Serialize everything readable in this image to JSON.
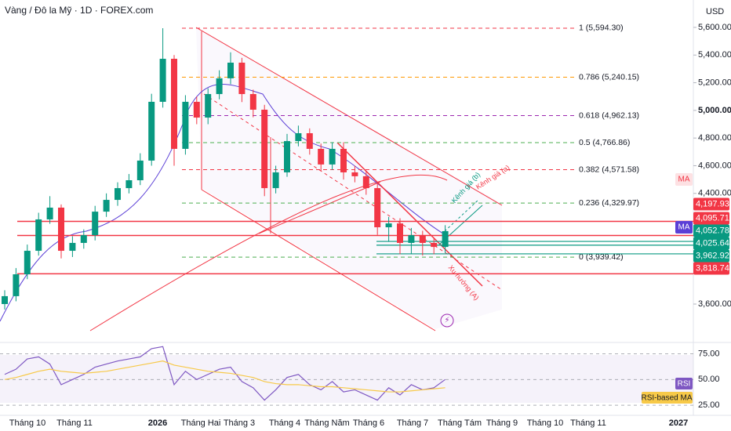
{
  "chart_data": [
    {
      "type": "candlestick",
      "title": "Vàng / Đô la Mỹ · 1D · FOREX.com",
      "currency": "USD",
      "up_color": "#089981",
      "down_color": "#f23645",
      "x_labels": [
        "Tháng 10",
        "Tháng 11",
        "2026",
        "Tháng Hai",
        "Tháng 3",
        "Tháng 4",
        "Tháng Năm",
        "Tháng 6",
        "Tháng 7",
        "Tháng Tám",
        "Tháng 9",
        "Tháng 10",
        "Tháng 11",
        "2027"
      ],
      "open": [
        3600,
        3657,
        3815,
        3985,
        4212,
        4297,
        3985,
        4042,
        4098,
        4268,
        4353,
        4438,
        4495,
        4637,
        5062,
        5373,
        4722,
        5062,
        4948,
        5118,
        5232,
        5345,
        5118,
        5005,
        4438,
        4552,
        4778,
        4835,
        4722,
        4609,
        4722,
        4552,
        4524,
        4438,
        4155,
        4183,
        4042,
        4098,
        4042,
        4013
      ],
      "high": [
        3700,
        3860,
        4030,
        4260,
        4380,
        4320,
        4090,
        4140,
        4310,
        4400,
        4480,
        4540,
        4690,
        5120,
        5594,
        5400,
        5110,
        5100,
        5160,
        5290,
        5420,
        5380,
        5150,
        5040,
        4600,
        4830,
        4890,
        4870,
        4760,
        4770,
        4770,
        4600,
        4560,
        4470,
        4230,
        4220,
        4150,
        4130,
        4080,
        4170
      ],
      "low": [
        3560,
        3620,
        3780,
        3950,
        4180,
        3930,
        3940,
        4000,
        4060,
        4230,
        4310,
        4400,
        4460,
        4600,
        5020,
        4600,
        4680,
        4900,
        4900,
        5080,
        5190,
        5060,
        4950,
        4380,
        4400,
        4520,
        4740,
        4680,
        4560,
        4570,
        4500,
        4480,
        4390,
        4100,
        4050,
        3960,
        3960,
        3950,
        3960,
        3970
      ],
      "close": [
        3657,
        3815,
        3985,
        4212,
        4297,
        3985,
        4042,
        4098,
        4268,
        4353,
        4438,
        4495,
        4637,
        5062,
        5373,
        4722,
        5062,
        4948,
        5118,
        5232,
        5345,
        5118,
        5005,
        4438,
        4552,
        4778,
        4835,
        4722,
        4609,
        4722,
        4552,
        4524,
        4438,
        4155,
        4183,
        4042,
        4098,
        4042,
        4013,
        4127
      ],
      "ylim": [
        3362,
        5798
      ],
      "yticks": [
        {
          "value": 5600,
          "label": "5,600.00"
        },
        {
          "value": 5400,
          "label": "5,400.00"
        },
        {
          "value": 5200,
          "label": "5,200.00"
        },
        {
          "value": 5000,
          "label": "5,000.00"
        },
        {
          "value": 4800,
          "label": "4,800.00"
        },
        {
          "value": 4600,
          "label": "4,600.00"
        },
        {
          "value": 4400,
          "label": "4,400.00"
        },
        {
          "value": 3600,
          "label": "3,600.00"
        }
      ],
      "fib_levels": [
        {
          "label": "1 (5,594.30)",
          "value": 5594.3,
          "color": "#f23645"
        },
        {
          "label": "0.786 (5,240.15)",
          "value": 5240.15,
          "color": "#ff9800"
        },
        {
          "label": "0.618 (4,962.13)",
          "value": 4962.13,
          "color": "#9c27b0"
        },
        {
          "label": "0.5 (4,766.86)",
          "value": 4766.86,
          "color": "#4caf50"
        },
        {
          "label": "0.382 (4,571.58)",
          "value": 4571.58,
          "color": "#f23645"
        },
        {
          "label": "0.236 (4,329.97)",
          "value": 4329.97,
          "color": "#4caf50"
        },
        {
          "label": "0 (3,939.42)",
          "value": 3939.42,
          "color": "#4caf50"
        }
      ],
      "price_tags": [
        {
          "value": 4197.93,
          "label": "4,197.93",
          "color": "#f23645"
        },
        {
          "value": 4095.71,
          "label": "4,095.71",
          "color": "#f23645"
        },
        {
          "value": 4052.78,
          "label": "4,052.78",
          "color": "#089981"
        },
        {
          "value": 4025.64,
          "label": "4,025.64",
          "color": "#089981"
        },
        {
          "value": 3962.92,
          "label": "3,962.92",
          "color": "#089981"
        },
        {
          "value": 3818.74,
          "label": "3,818.74",
          "color": "#f23645"
        }
      ],
      "ma_tags": [
        "MA",
        "MA"
      ],
      "annotations": [
        "Kênh giá (a)",
        "Kênh giá (b)",
        "Xu hướng (A)"
      ]
    },
    {
      "type": "line",
      "name": "RSI",
      "ma_name": "RSI-based MA",
      "series": [
        {
          "name": "RSI",
          "color": "#7e57c2",
          "values": [
            55,
            60,
            70,
            72,
            65,
            45,
            50,
            55,
            62,
            65,
            68,
            70,
            72,
            80,
            82,
            45,
            58,
            50,
            55,
            60,
            62,
            48,
            42,
            30,
            40,
            52,
            55,
            45,
            40,
            48,
            38,
            40,
            35,
            30,
            42,
            35,
            45,
            40,
            42,
            50
          ]
        },
        {
          "name": "RSI-based MA",
          "color": "#f7c948",
          "values": [
            50,
            52,
            55,
            58,
            60,
            58,
            57,
            56,
            57,
            58,
            60,
            62,
            64,
            66,
            68,
            64,
            62,
            60,
            58,
            57,
            56,
            54,
            52,
            48,
            46,
            45,
            45,
            44,
            43,
            43,
            42,
            41,
            40,
            39,
            38,
            38,
            39,
            40,
            41,
            42
          ]
        }
      ],
      "ylim": [
        16,
        86
      ],
      "yticks": [
        {
          "value": 75,
          "label": "75.00"
        },
        {
          "value": 50,
          "label": "50.00"
        },
        {
          "value": 25,
          "label": "25.00"
        }
      ]
    }
  ]
}
